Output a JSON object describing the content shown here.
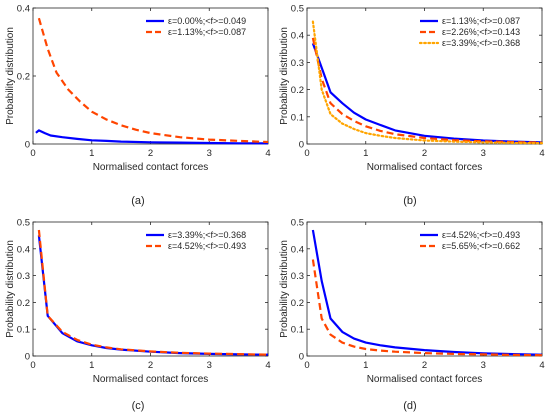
{
  "chart_data": [
    {
      "type": "line",
      "caption": "(a)",
      "xlabel": "Normalised contact forces",
      "ylabel": "Probability distribution",
      "xlim": [
        0,
        4
      ],
      "ylim": [
        0,
        0.4
      ],
      "xticks": [
        0,
        1,
        2,
        3,
        4
      ],
      "yticks": [
        0,
        0.2,
        0.4
      ],
      "legend_position": "top-right",
      "grid": false,
      "series": [
        {
          "name": "ε=0.00%;<f>=0.049",
          "color": "#0000ff",
          "style": "solid",
          "x": [
            0.05,
            0.1,
            0.2,
            0.3,
            0.5,
            0.75,
            1.0,
            1.25,
            1.5,
            2.0,
            2.5,
            3.0,
            3.5,
            4.0
          ],
          "y": [
            0.033,
            0.04,
            0.032,
            0.025,
            0.02,
            0.015,
            0.011,
            0.009,
            0.007,
            0.005,
            0.004,
            0.003,
            0.002,
            0.002
          ]
        },
        {
          "name": "ε=1.13%;<f>=0.087",
          "color": "#ff4500",
          "style": "dashed",
          "x": [
            0.1,
            0.25,
            0.4,
            0.6,
            0.8,
            1.0,
            1.25,
            1.5,
            1.75,
            2.0,
            2.5,
            3.0,
            3.5,
            4.0
          ],
          "y": [
            0.37,
            0.28,
            0.21,
            0.16,
            0.125,
            0.095,
            0.072,
            0.055,
            0.042,
            0.032,
            0.02,
            0.013,
            0.009,
            0.006
          ]
        }
      ]
    },
    {
      "type": "line",
      "caption": "(b)",
      "xlabel": "Normalised contact forces",
      "ylabel": "Probability distribution",
      "xlim": [
        0,
        4
      ],
      "ylim": [
        0,
        0.5
      ],
      "xticks": [
        0,
        1,
        2,
        3,
        4
      ],
      "yticks": [
        0,
        0.1,
        0.2,
        0.3,
        0.4,
        0.5
      ],
      "legend_position": "top-right",
      "grid": false,
      "series": [
        {
          "name": "ε=1.13%;<f>=0.087",
          "color": "#0000ff",
          "style": "solid",
          "x": [
            0.1,
            0.25,
            0.4,
            0.6,
            0.8,
            1.0,
            1.25,
            1.5,
            2.0,
            2.5,
            3.0,
            3.5,
            4.0
          ],
          "y": [
            0.37,
            0.28,
            0.19,
            0.15,
            0.115,
            0.09,
            0.07,
            0.05,
            0.03,
            0.02,
            0.013,
            0.009,
            0.006
          ]
        },
        {
          "name": "ε=2.26%;<f>=0.143",
          "color": "#ff4500",
          "style": "dashed",
          "x": [
            0.1,
            0.25,
            0.4,
            0.6,
            0.8,
            1.0,
            1.25,
            1.5,
            2.0,
            2.5,
            3.0,
            3.5,
            4.0
          ],
          "y": [
            0.39,
            0.24,
            0.15,
            0.11,
            0.085,
            0.065,
            0.048,
            0.036,
            0.022,
            0.014,
            0.01,
            0.007,
            0.005
          ]
        },
        {
          "name": "ε=3.39%;<f>=0.368",
          "color": "#ffa500",
          "style": "dotted",
          "x": [
            0.1,
            0.25,
            0.4,
            0.6,
            0.8,
            1.0,
            1.25,
            1.5,
            2.0,
            2.5,
            3.0,
            3.5,
            4.0
          ],
          "y": [
            0.45,
            0.2,
            0.11,
            0.075,
            0.055,
            0.04,
            0.03,
            0.022,
            0.013,
            0.009,
            0.006,
            0.004,
            0.003
          ]
        }
      ]
    },
    {
      "type": "line",
      "caption": "(c)",
      "xlabel": "Normalised contact forces",
      "ylabel": "Probability distribution",
      "xlim": [
        0,
        4
      ],
      "ylim": [
        0,
        0.5
      ],
      "xticks": [
        0,
        1,
        2,
        3,
        4
      ],
      "yticks": [
        0,
        0.1,
        0.2,
        0.3,
        0.4,
        0.5
      ],
      "legend_position": "top-right",
      "grid": false,
      "series": [
        {
          "name": "ε=3.39%;<f>=0.368",
          "color": "#0000ff",
          "style": "solid",
          "x": [
            0.1,
            0.25,
            0.5,
            0.75,
            1.0,
            1.25,
            1.5,
            2.0,
            2.5,
            3.0,
            3.5,
            4.0
          ],
          "y": [
            0.45,
            0.15,
            0.085,
            0.055,
            0.04,
            0.03,
            0.024,
            0.016,
            0.011,
            0.008,
            0.006,
            0.005
          ]
        },
        {
          "name": "ε=4.52%;<f>=0.493",
          "color": "#ff4500",
          "style": "dashed",
          "x": [
            0.1,
            0.25,
            0.5,
            0.75,
            1.0,
            1.25,
            1.5,
            2.0,
            2.5,
            3.0,
            3.5,
            4.0
          ],
          "y": [
            0.47,
            0.15,
            0.09,
            0.06,
            0.042,
            0.032,
            0.025,
            0.017,
            0.012,
            0.009,
            0.007,
            0.005
          ]
        }
      ]
    },
    {
      "type": "line",
      "caption": "(d)",
      "xlabel": "Normalised contact forces",
      "ylabel": "Probability distribution",
      "xlim": [
        0,
        4
      ],
      "ylim": [
        0,
        0.5
      ],
      "xticks": [
        0,
        1,
        2,
        3,
        4
      ],
      "yticks": [
        0,
        0.1,
        0.2,
        0.3,
        0.4,
        0.5
      ],
      "legend_position": "top-right",
      "grid": false,
      "series": [
        {
          "name": "ε=4.52%;<f>=0.493",
          "color": "#0000ff",
          "style": "solid",
          "x": [
            0.1,
            0.25,
            0.4,
            0.6,
            0.8,
            1.0,
            1.25,
            1.5,
            2.0,
            2.5,
            3.0,
            3.5,
            4.0
          ],
          "y": [
            0.47,
            0.28,
            0.14,
            0.09,
            0.065,
            0.05,
            0.04,
            0.032,
            0.022,
            0.015,
            0.01,
            0.007,
            0.005
          ]
        },
        {
          "name": "ε=5.65%;<f>=0.662",
          "color": "#ff4500",
          "style": "dashed",
          "x": [
            0.1,
            0.25,
            0.4,
            0.6,
            0.8,
            1.0,
            1.25,
            1.5,
            2.0,
            2.5,
            3.0,
            3.5,
            4.0
          ],
          "y": [
            0.36,
            0.14,
            0.08,
            0.05,
            0.035,
            0.026,
            0.02,
            0.016,
            0.011,
            0.008,
            0.006,
            0.004,
            0.003
          ]
        }
      ]
    }
  ]
}
